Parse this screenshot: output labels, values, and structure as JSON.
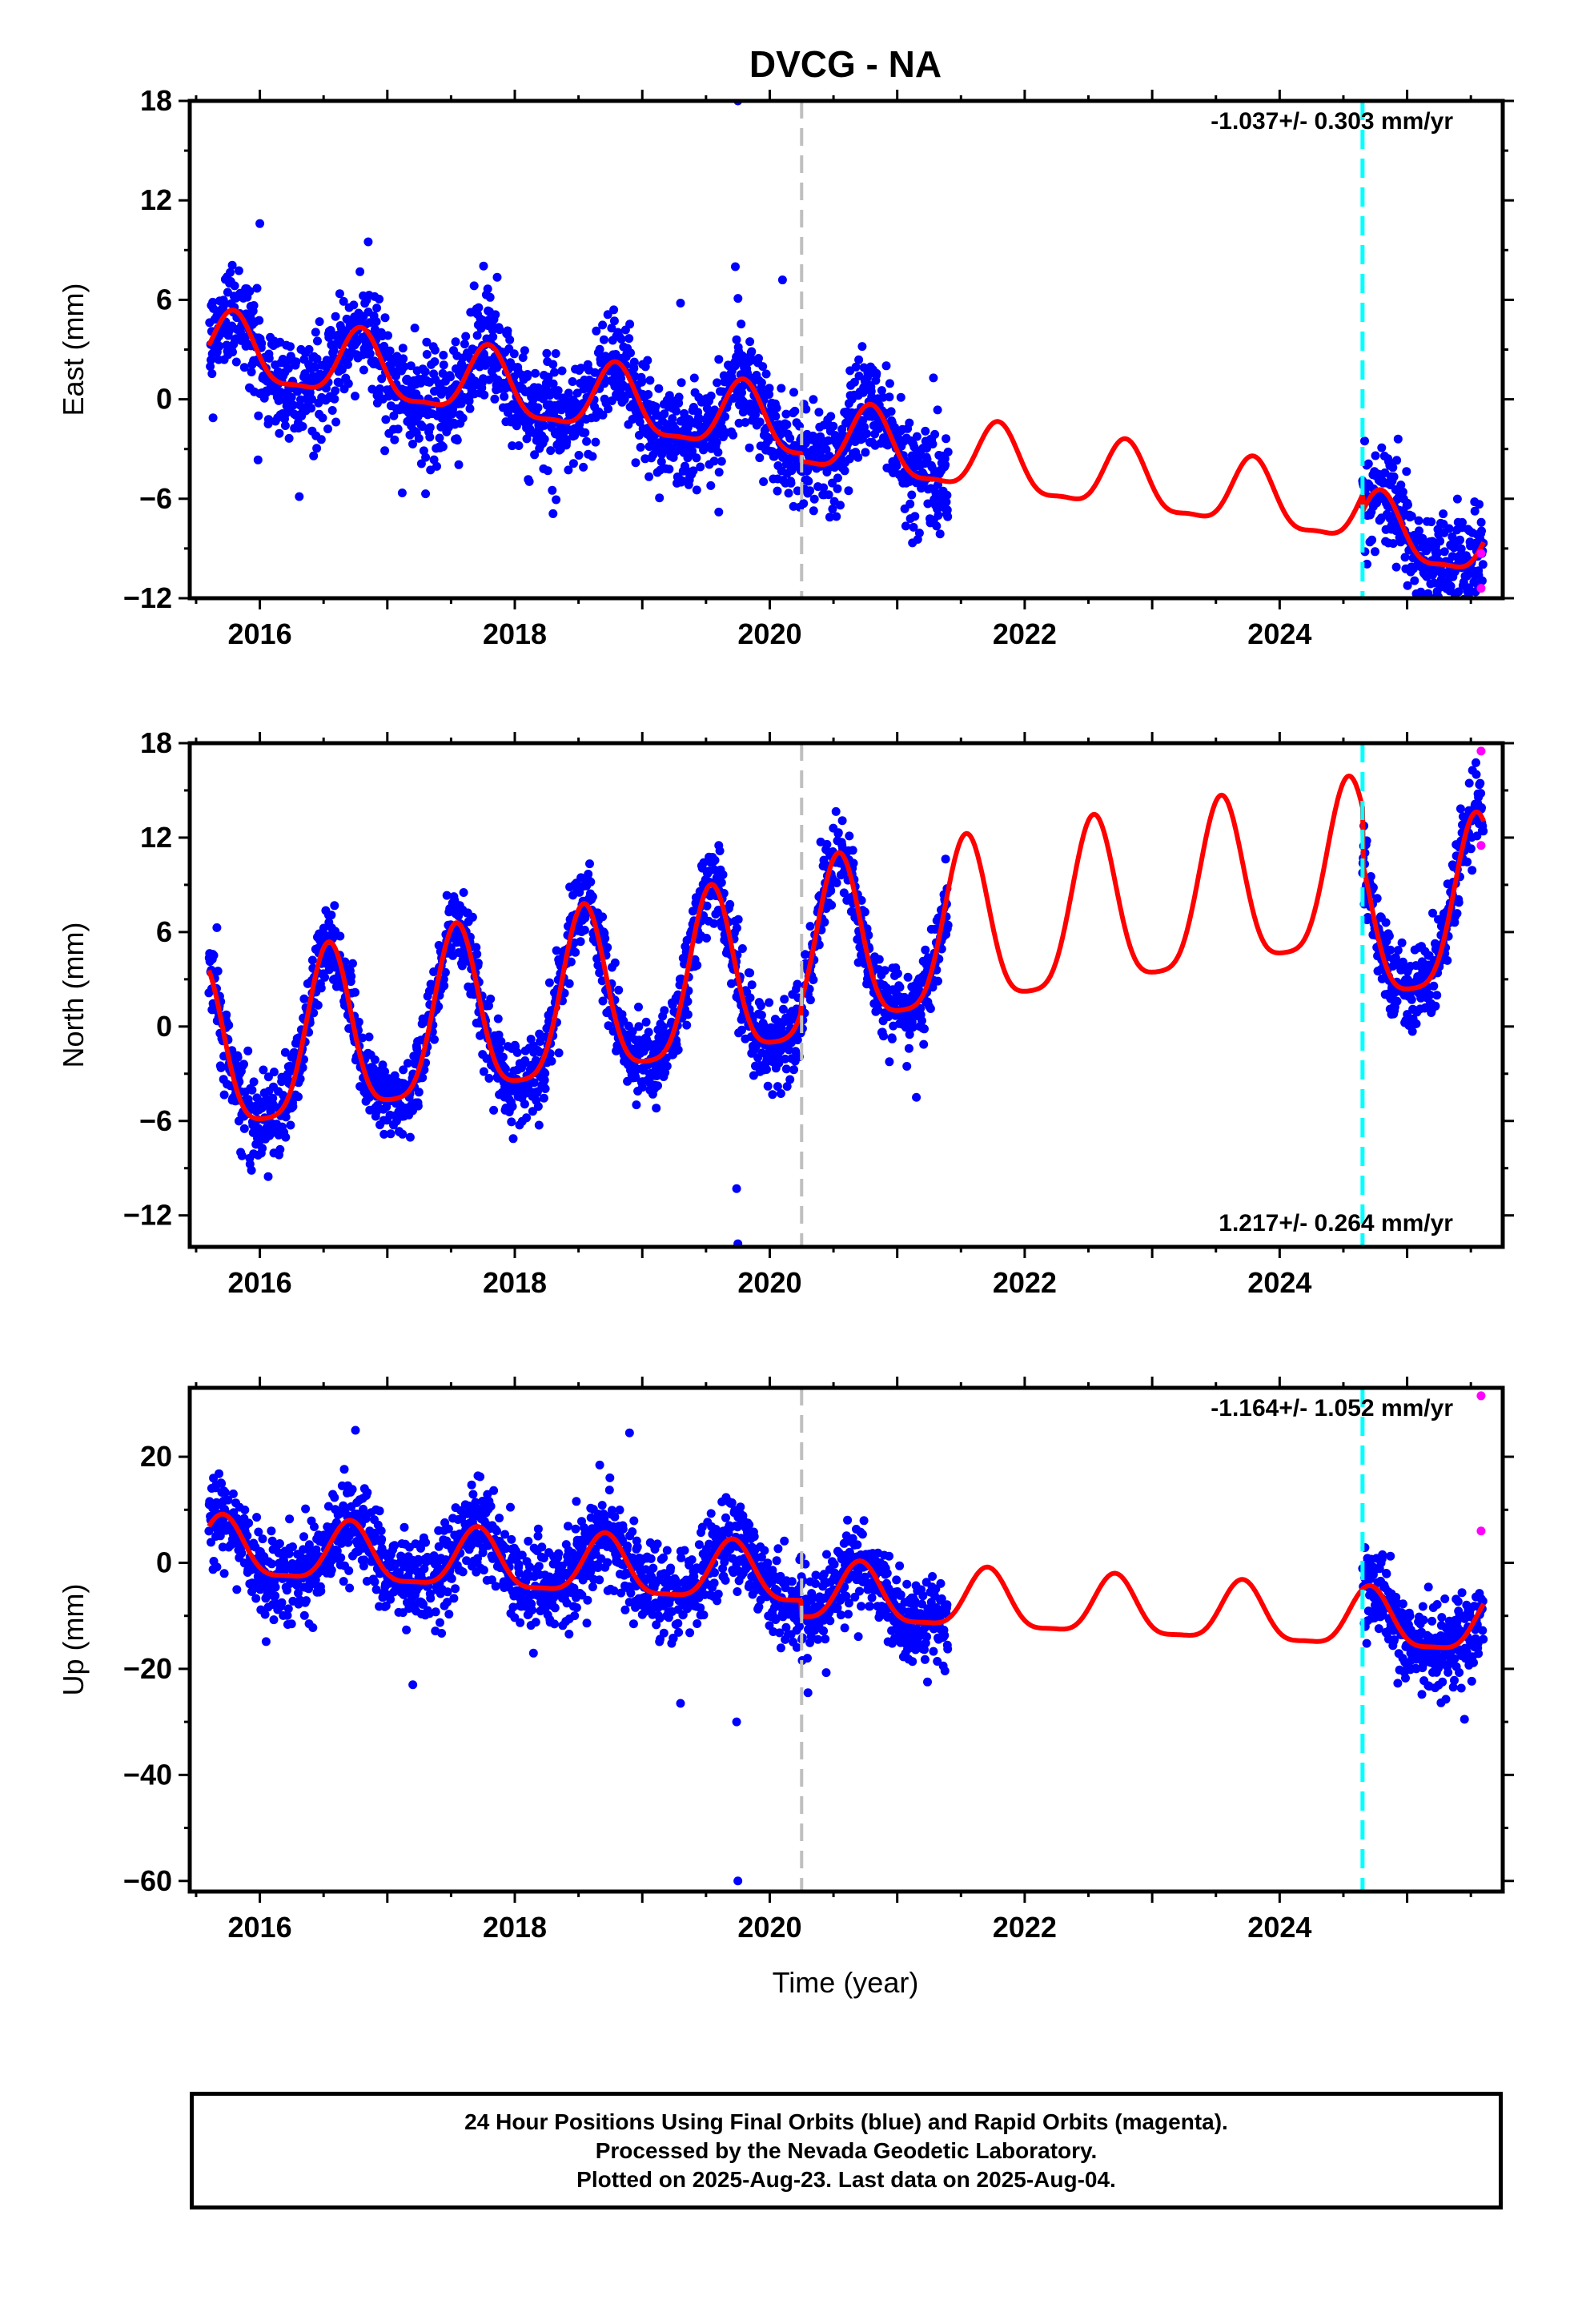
{
  "title": "DVCG - NA",
  "colors": {
    "final_points": "#0000ff",
    "rapid_points": "#ff00ff",
    "model": "#ff0000",
    "antenna_change_line": "#bfbfbf",
    "event_line": "#00ffff",
    "frame": "#000000"
  },
  "xlabel": "Time (year)",
  "footer": {
    "line1": "24 Hour Positions Using Final Orbits (blue) and Rapid Orbits (magenta).",
    "line2": "Processed by the Nevada Geodetic Laboratory.",
    "line3": "Plotted on 2025-Aug-23. Last data on 2025-Aug-04."
  },
  "chart_data": [
    {
      "type": "scatter",
      "component": "east",
      "ylabel": "East (mm)",
      "rate_label": "-1.037+/- 0.303 mm/yr",
      "rate_position": "top-right",
      "xlim": [
        2015.45,
        2025.75
      ],
      "ylim": [
        -12,
        18
      ],
      "xticks": [
        2016,
        2018,
        2020,
        2022,
        2024
      ],
      "xtick_labels": [
        "2016",
        "2018",
        "2020",
        "2022",
        "2024"
      ],
      "yticks": [
        -12,
        -6,
        0,
        6,
        12,
        18
      ],
      "ytick_labels": [
        "−12",
        "−6",
        "0",
        "6",
        "12",
        "18"
      ],
      "gray_dashed_line_x": 2020.25,
      "cyan_dashed_line_x": 2024.65,
      "model": {
        "trend_at_2015": 3.6,
        "rate": -1.037,
        "annual_amp": 2.0,
        "annual_peak_month": 10,
        "semiannual_amp": 0.6,
        "offset_at_2020_25": -0.5,
        "offset_at_2024_65": -1.0
      },
      "final_data_segments": [
        [
          2015.6,
          2021.4
        ],
        [
          2024.65,
          2025.6
        ]
      ],
      "noise_std": 1.6,
      "outliers": [
        [
          2019.75,
          18.0
        ],
        [
          2019.73,
          8.0
        ],
        [
          2020.1,
          7.2
        ],
        [
          2016.0,
          10.6
        ],
        [
          2016.85,
          9.5
        ],
        [
          2019.3,
          5.8
        ],
        [
          2018.3,
          -6.9
        ],
        [
          2019.6,
          -6.8
        ],
        [
          2017.3,
          -5.7
        ]
      ],
      "rapid_points": [
        [
          2025.58,
          -9.3
        ],
        [
          2025.58,
          -11.4
        ]
      ]
    },
    {
      "type": "scatter",
      "component": "north",
      "ylabel": "North (mm)",
      "rate_label": "1.217+/- 0.264 mm/yr",
      "rate_position": "bottom-right",
      "xlim": [
        2015.45,
        2025.75
      ],
      "ylim": [
        -14,
        18
      ],
      "xticks": [
        2016,
        2018,
        2020,
        2022,
        2024
      ],
      "xtick_labels": [
        "2016",
        "2018",
        "2020",
        "2022",
        "2024"
      ],
      "yticks": [
        -12,
        -6,
        0,
        6,
        12,
        18
      ],
      "ytick_labels": [
        "−12",
        "−6",
        "0",
        "6",
        "12",
        "18"
      ],
      "gray_dashed_line_x": 2020.25,
      "cyan_dashed_line_x": 2024.65,
      "model": {
        "trend_at_2015": -3.0,
        "rate": 1.217,
        "annual_amp": 5.3,
        "annual_peak_month": 7,
        "semiannual_amp": 1.2,
        "offset_at_2020_25": 0.8,
        "offset_at_2024_65": -3.5
      },
      "final_data_segments": [
        [
          2015.6,
          2021.4
        ],
        [
          2024.65,
          2025.6
        ]
      ],
      "noise_std": 1.3,
      "outliers": [
        [
          2019.75,
          -13.8
        ],
        [
          2019.74,
          -10.3
        ],
        [
          2019.6,
          11.5
        ],
        [
          2021.15,
          -4.5
        ],
        [
          2024.9,
          1.0
        ]
      ],
      "rapid_points": [
        [
          2025.58,
          17.5
        ],
        [
          2025.58,
          11.5
        ]
      ]
    },
    {
      "type": "scatter",
      "component": "up",
      "ylabel": "Up (mm)",
      "rate_label": "-1.164+/- 1.052 mm/yr",
      "rate_position": "top-right",
      "xlim": [
        2015.45,
        2025.75
      ],
      "ylim": [
        -62,
        33
      ],
      "xticks": [
        2016,
        2018,
        2020,
        2022,
        2024
      ],
      "xtick_labels": [
        "2016",
        "2018",
        "2020",
        "2022",
        "2024"
      ],
      "yticks": [
        -60,
        -40,
        -20,
        0,
        20
      ],
      "ytick_labels": [
        "−60",
        "−40",
        "−20",
        "0",
        "20"
      ],
      "gray_dashed_line_x": 2020.25,
      "cyan_dashed_line_x": 2024.65,
      "model": {
        "trend_at_2015": 3.0,
        "rate": -1.164,
        "annual_amp": 5.5,
        "annual_peak_month": 9,
        "semiannual_amp": 1.5,
        "offset_at_2020_25": -3.0,
        "offset_at_2024_65": 0.0
      },
      "final_data_segments": [
        [
          2015.6,
          2021.4
        ],
        [
          2024.65,
          2025.6
        ]
      ],
      "noise_std": 4.2,
      "outliers": [
        [
          2019.75,
          -60.0
        ],
        [
          2019.74,
          -30.0
        ],
        [
          2020.3,
          -24.5
        ],
        [
          2016.75,
          25.0
        ],
        [
          2018.9,
          24.5
        ],
        [
          2019.3,
          -26.5
        ],
        [
          2025.45,
          -29.5
        ],
        [
          2017.2,
          -23.0
        ]
      ],
      "rapid_points": [
        [
          2025.58,
          31.5
        ],
        [
          2025.58,
          6.0
        ]
      ]
    }
  ]
}
